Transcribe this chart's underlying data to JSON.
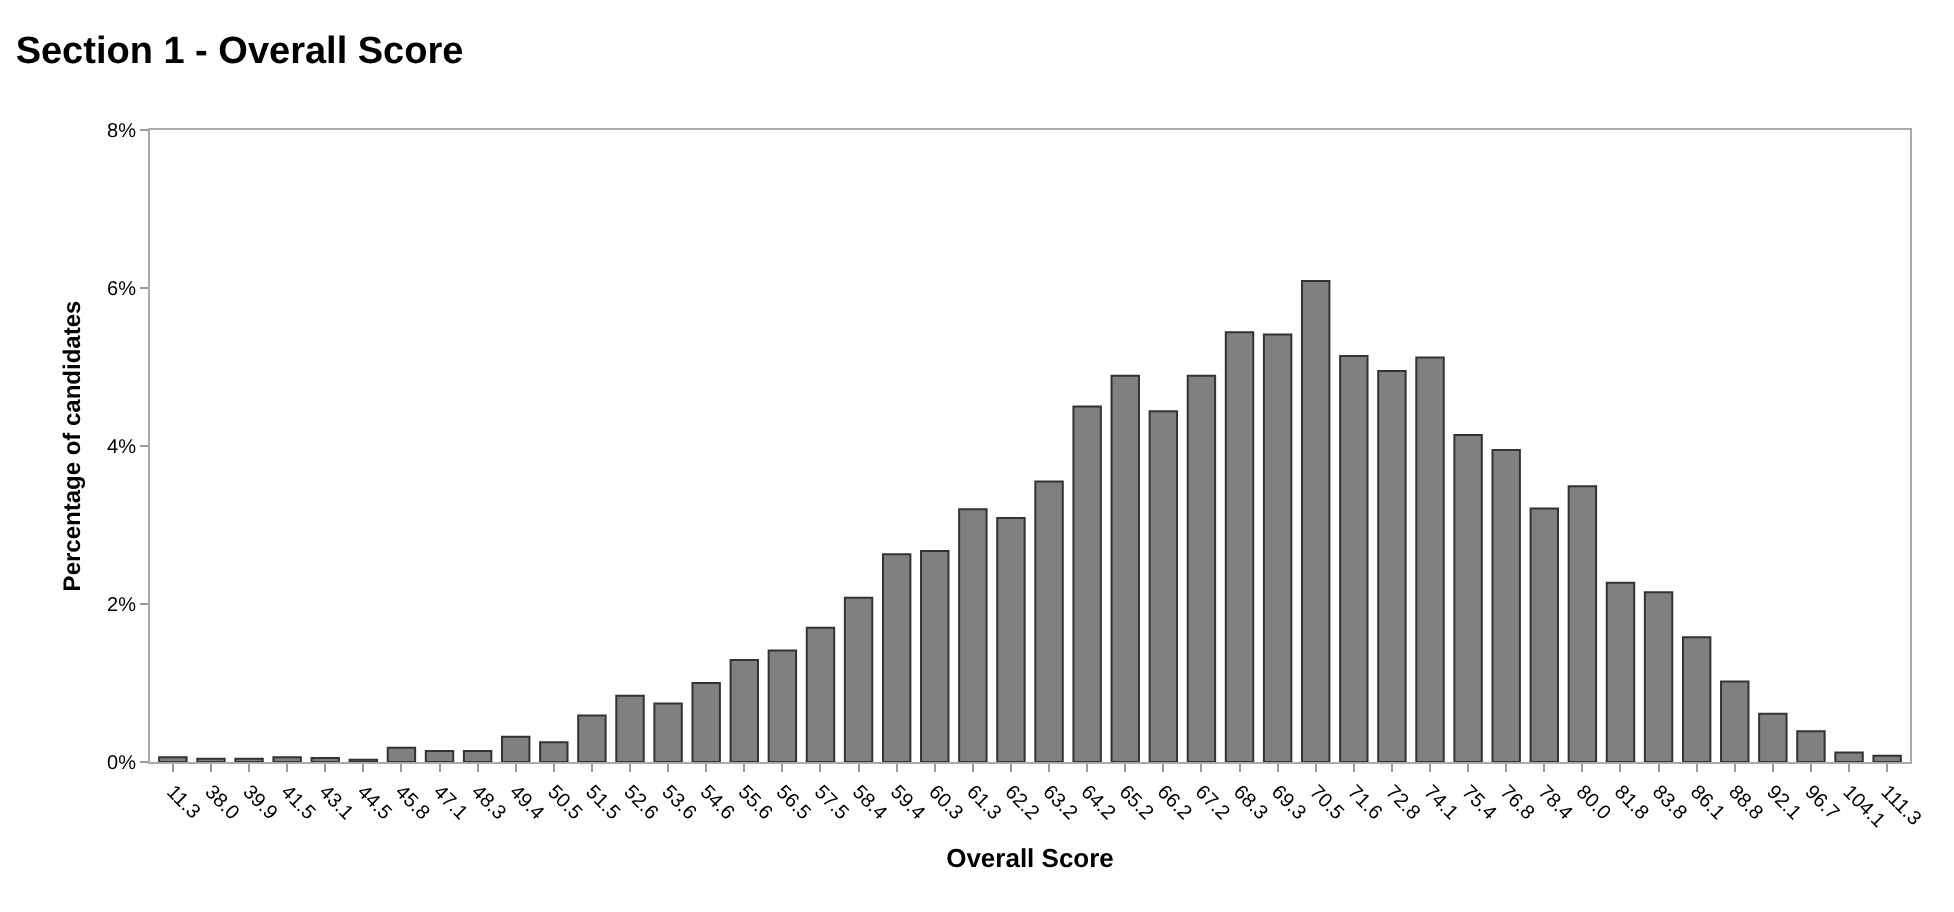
{
  "chart_data": {
    "type": "bar",
    "title": "Section 1 - Overall Score",
    "xlabel": "Overall Score",
    "ylabel": "Percentage of candidates",
    "categories": [
      "11.3",
      "38.0",
      "39.9",
      "41.5",
      "43.1",
      "44.5",
      "45.8",
      "47.1",
      "48.3",
      "49.4",
      "50.5",
      "51.5",
      "52.6",
      "53.6",
      "54.6",
      "55.6",
      "56.5",
      "57.5",
      "58.4",
      "59.4",
      "60.3",
      "61.3",
      "62.2",
      "63.2",
      "64.2",
      "65.2",
      "66.2",
      "67.2",
      "68.3",
      "69.3",
      "70.5",
      "71.6",
      "72.8",
      "74.1",
      "75.4",
      "76.8",
      "78.4",
      "80.0",
      "81.8",
      "83.8",
      "86.1",
      "88.8",
      "92.1",
      "96.7",
      "104.1",
      "111.3"
    ],
    "values": [
      0.06,
      0.04,
      0.04,
      0.06,
      0.05,
      0.03,
      0.18,
      0.14,
      0.14,
      0.32,
      0.25,
      0.59,
      0.84,
      0.74,
      1.0,
      1.29,
      1.41,
      1.7,
      2.08,
      2.63,
      2.67,
      3.2,
      3.09,
      3.55,
      4.5,
      4.89,
      4.44,
      4.89,
      5.44,
      5.41,
      6.09,
      5.14,
      4.95,
      5.12,
      4.14,
      3.95,
      3.21,
      3.49,
      2.27,
      2.15,
      1.58,
      1.02,
      0.61,
      0.39,
      0.12,
      0.08
    ],
    "color": "#808080",
    "ylim": [
      0,
      8
    ],
    "yticks": [
      {
        "value": 0,
        "label": "0%"
      },
      {
        "value": 2,
        "label": "2%"
      },
      {
        "value": 4,
        "label": "4%"
      },
      {
        "value": 6,
        "label": "6%"
      },
      {
        "value": 8,
        "label": "8%"
      }
    ],
    "legend": false
  }
}
